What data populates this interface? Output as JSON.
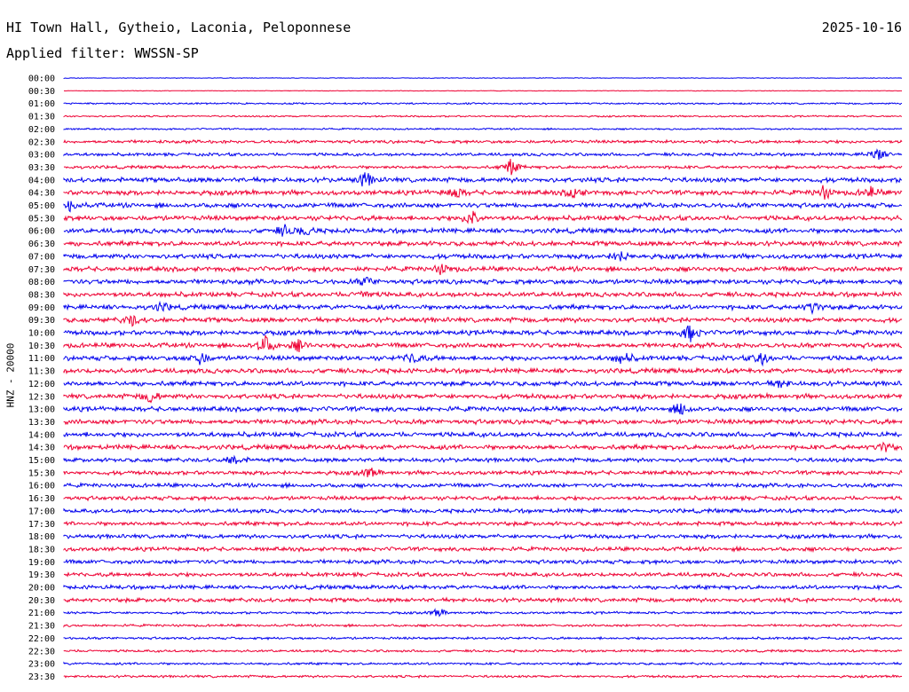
{
  "header": {
    "station": "HI Town Hall, Gytheio, Laconia, Peloponnese",
    "date": "2025-10-16",
    "filter": "Applied filter: WWSSN-SP"
  },
  "chart_data": {
    "type": "line",
    "ylabel": "HNZ - 20000",
    "times": [
      "00:00",
      "00:30",
      "01:00",
      "01:30",
      "02:00",
      "02:30",
      "03:00",
      "03:30",
      "04:00",
      "04:30",
      "05:00",
      "05:30",
      "06:00",
      "06:30",
      "07:00",
      "07:30",
      "08:00",
      "08:30",
      "09:00",
      "09:30",
      "10:00",
      "10:30",
      "11:00",
      "11:30",
      "12:00",
      "12:30",
      "13:00",
      "13:30",
      "14:00",
      "14:30",
      "15:00",
      "15:30",
      "16:00",
      "16:30",
      "17:00",
      "17:30",
      "18:00",
      "18:30",
      "19:00",
      "19:30",
      "20:00",
      "20:30",
      "21:00",
      "21:30",
      "22:00",
      "22:30",
      "23:00",
      "23:30"
    ],
    "colors": [
      "#0000ee",
      "#ee0033"
    ]
  }
}
